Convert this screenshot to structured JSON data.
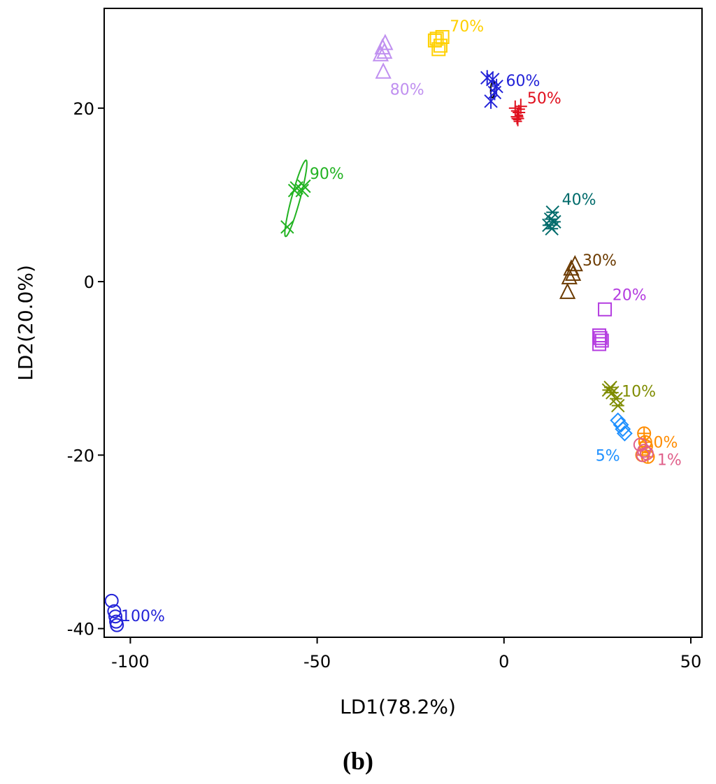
{
  "chart_data": {
    "type": "scatter",
    "title": "",
    "xlabel": "LD1(78.2%)",
    "ylabel": "LD2(20.0%)",
    "xlim": [
      -107,
      53
    ],
    "ylim": [
      -41,
      31.5
    ],
    "xticks": [
      -100,
      -50,
      0,
      50
    ],
    "yticks": [
      -40,
      -20,
      0,
      20
    ],
    "xtick_labels": [
      "-100",
      "-50",
      "0",
      "50"
    ],
    "ytick_labels": [
      "-40",
      "-20",
      "0",
      "20"
    ],
    "grid": false,
    "panel_label": "(b)",
    "series": [
      {
        "name": "0%",
        "label": "0%",
        "marker": "circle-plus",
        "color": "#ff8c00",
        "points": [
          [
            37.5,
            -17.5
          ],
          [
            38,
            -19
          ],
          [
            37,
            -20
          ],
          [
            38.5,
            -20.2
          ],
          [
            37.8,
            -18.5
          ]
        ],
        "label_at": [
          40,
          -18.5
        ]
      },
      {
        "name": "1%",
        "label": "1%",
        "marker": "circle",
        "color": "#e0608a",
        "points": [
          [
            36.5,
            -18.8
          ],
          [
            37.5,
            -19.5
          ],
          [
            37.2,
            -20
          ],
          [
            38.2,
            -19.8
          ]
        ],
        "label_at": [
          41,
          -20.5
        ]
      },
      {
        "name": "5%",
        "label": "5%",
        "marker": "diamond",
        "color": "#1e90ff",
        "points": [
          [
            30.5,
            -16
          ],
          [
            31.3,
            -16.5
          ],
          [
            31.8,
            -17
          ],
          [
            32.3,
            -17.5
          ]
        ],
        "label_at": [
          24.5,
          -20
        ]
      },
      {
        "name": "10%",
        "label": "10%",
        "marker": "star",
        "color": "#7f8c00",
        "points": [
          [
            28,
            -12.5
          ],
          [
            29,
            -12.8
          ],
          [
            28.5,
            -12.2
          ],
          [
            30,
            -13.5
          ],
          [
            30.5,
            -14.3
          ]
        ],
        "label_at": [
          31.5,
          -12.6
        ]
      },
      {
        "name": "20%",
        "label": "20%",
        "marker": "square",
        "color": "#b43de0",
        "points": [
          [
            27,
            -3.2
          ],
          [
            25.8,
            -6.5
          ],
          [
            25.5,
            -7.2
          ],
          [
            26.2,
            -6.8
          ],
          [
            25.5,
            -6.2
          ]
        ],
        "label_at": [
          29,
          -1.5
        ]
      },
      {
        "name": "30%",
        "label": "30%",
        "marker": "triangle",
        "color": "#6b3a00",
        "points": [
          [
            18,
            1.5
          ],
          [
            17.5,
            0.5
          ],
          [
            18.5,
            0.9
          ],
          [
            17,
            -1.2
          ],
          [
            19,
            2
          ]
        ],
        "label_at": [
          21,
          2.5
        ]
      },
      {
        "name": "40%",
        "label": "40%",
        "marker": "star",
        "color": "#006b6b",
        "points": [
          [
            12.5,
            7.2
          ],
          [
            13,
            8
          ],
          [
            12,
            6.5
          ],
          [
            13.5,
            6.9
          ],
          [
            12.8,
            6.1
          ]
        ],
        "label_at": [
          15.5,
          9.5
        ]
      },
      {
        "name": "50%",
        "label": "50%",
        "marker": "plus-line",
        "color": "#e0101e",
        "points": [
          [
            3,
            20
          ],
          [
            4,
            19.5
          ],
          [
            3.5,
            19
          ],
          [
            4.5,
            20.2
          ],
          [
            3.7,
            18.8
          ]
        ],
        "label_at": [
          6.2,
          21.2
        ]
      },
      {
        "name": "60%",
        "label": "60%",
        "marker": "asterisk",
        "color": "#2323d8",
        "points": [
          [
            -4.5,
            23.5
          ],
          [
            -3,
            23.3
          ],
          [
            -2.5,
            21.8
          ],
          [
            -3.5,
            20.8
          ],
          [
            -2,
            22.5
          ]
        ],
        "label_at": [
          0.5,
          23.2
        ]
      },
      {
        "name": "70%",
        "label": "70%",
        "marker": "square",
        "color": "#ffd000",
        "points": [
          [
            -18,
            28
          ],
          [
            -16.5,
            28.2
          ],
          [
            -17,
            27.2
          ],
          [
            -18.5,
            27.8
          ],
          [
            -17.5,
            26.8
          ]
        ],
        "label_at": [
          -14.5,
          29.5
        ]
      },
      {
        "name": "80%",
        "label": "80%",
        "marker": "triangle",
        "color": "#c090f0",
        "points": [
          [
            -32.5,
            27
          ],
          [
            -32,
            26.5
          ],
          [
            -33,
            26.2
          ],
          [
            -31.8,
            27.5
          ],
          [
            -32.3,
            24.2
          ]
        ],
        "label_at": [
          -30.5,
          22.2
        ]
      },
      {
        "name": "90%",
        "label": "90%",
        "marker": "x",
        "color": "#22b322",
        "points": [
          [
            -58,
            6.3
          ],
          [
            -56,
            10.5
          ],
          [
            -55.5,
            10.8
          ],
          [
            -53.5,
            11
          ],
          [
            -54,
            10.5
          ]
        ],
        "label_at": [
          -52,
          12.5
        ]
      },
      {
        "name": "100%",
        "label": "100%",
        "marker": "circle",
        "color": "#2323d8",
        "points": [
          [
            -105,
            -36.8
          ],
          [
            -104.3,
            -38
          ],
          [
            -104,
            -38.6
          ],
          [
            -103.8,
            -39.2
          ],
          [
            -103.6,
            -39.6
          ]
        ],
        "label_at": [
          -102.5,
          -38.5
        ]
      }
    ],
    "ellipses": [
      {
        "series": "90%",
        "cx": -55.7,
        "cy": 9.6,
        "rx": 5.2,
        "ry": 1.0,
        "angle_deg": 57,
        "color": "#22b322"
      },
      {
        "series": "60%",
        "cx": -3.0,
        "cy": 22.2,
        "rx": 1.0,
        "ry": 0.55,
        "angle_deg": 80,
        "color": "#000000"
      }
    ]
  }
}
